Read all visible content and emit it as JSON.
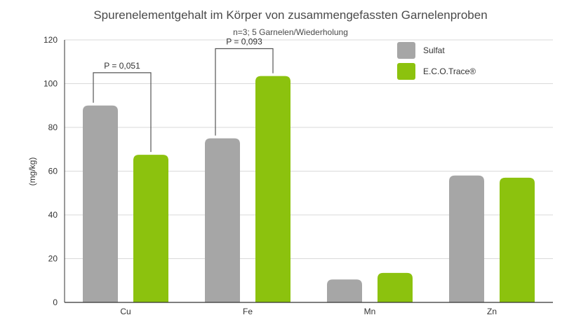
{
  "chart_data": {
    "type": "bar",
    "title": "Spurenelementgehalt im Körper von zusammengefassten Garnelenproben",
    "subtitle": "n=3; 5 Garnelen/Wiederholung",
    "ylabel": "(mg/kg)",
    "xlabel": "",
    "ylim": [
      0,
      120
    ],
    "yticks": [
      0,
      20,
      40,
      60,
      80,
      100,
      120
    ],
    "grid": true,
    "legend_position": "top-right",
    "categories": [
      "Cu",
      "Fe",
      "Mn",
      "Zn"
    ],
    "series": [
      {
        "name": "Sulfat",
        "color": "#a6a6a6",
        "values": [
          90,
          75,
          10.5,
          58
        ]
      },
      {
        "name": "E.C.O.Trace®",
        "color": "#8cc20e",
        "values": [
          67.5,
          103.5,
          13.5,
          57
        ]
      }
    ],
    "annotations": [
      {
        "text": "P = 0,051",
        "category": "Cu",
        "level": 105
      },
      {
        "text": "P = 0,093",
        "category": "Fe",
        "level": 116
      }
    ]
  }
}
